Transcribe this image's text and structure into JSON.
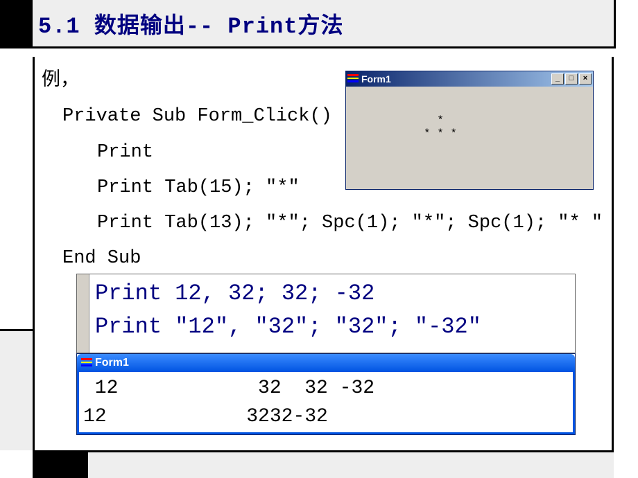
{
  "header": {
    "title": "5.1  数据输出-- Print方法"
  },
  "code": {
    "l1": "例，",
    "l2": "Private Sub Form_Click()",
    "l3": "Print",
    "l4": "Print Tab(15); \"*\"",
    "l5": "Print Tab(13); \"*\"; Spc(1); \"*\"; Spc(1); \"* \"",
    "l6": "End Sub"
  },
  "form1": {
    "title": "Form1",
    "btn_min": "_",
    "btn_max": "□",
    "btn_close": "×",
    "line1": "  *",
    "line2": "* * *"
  },
  "editor": {
    "l1": "Print 12, 32; 32; -32",
    "l2": "Print \"12\", \"32\"; \"32\"; \"-32\""
  },
  "form2": {
    "title": "Form1",
    "out_l1": " 12            32  32 -32",
    "out_l2": "12            3232-32"
  }
}
